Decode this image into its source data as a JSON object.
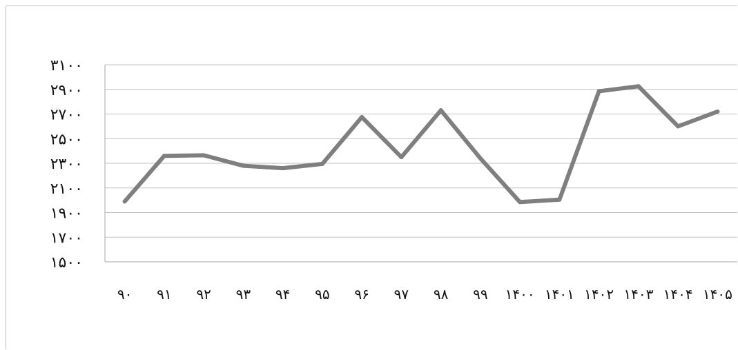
{
  "chart_data": {
    "type": "line",
    "title": "",
    "xlabel": "",
    "ylabel": "",
    "categories": [
      "۹۰",
      "۹۱",
      "۹۲",
      "۹۳",
      "۹۴",
      "۹۵",
      "۹۶",
      "۹۷",
      "۹۸",
      "۹۹",
      "۱۴۰۰",
      "۱۴۰۱",
      "۱۴۰۲",
      "۱۴۰۳",
      "۱۴۰۴",
      "۱۴۰۵"
    ],
    "category_labels": [
      [
        "۹۰"
      ],
      [
        "۹۱"
      ],
      [
        "۹۲"
      ],
      [
        "۹۳"
      ],
      [
        "۹۴"
      ],
      [
        "۹۵"
      ],
      [
        "۹۶"
      ],
      [
        "۹۷"
      ],
      [
        "۹۸"
      ],
      [
        "۹۹"
      ],
      [
        "۱۴۰۰"
      ],
      [
        "۱۴۰۱"
      ],
      [
        "۱۴۰۲"
      ],
      [
        "۱۴۰۳"
      ],
      [
        "۱۴۰۴"
      ],
      [
        "۱۴۰۵"
      ]
    ],
    "values": [
      1990,
      2360,
      2365,
      2280,
      2260,
      2295,
      2675,
      2350,
      2730,
      2340,
      1985,
      2005,
      2885,
      2925,
      2600,
      2720
    ],
    "ylim": [
      1500,
      3100
    ],
    "yticks": [
      1500,
      1700,
      1900,
      2100,
      2300,
      2500,
      2700,
      2900,
      3100
    ],
    "ytick_labels": [
      "۱۵۰۰",
      "۱۷۰۰",
      "۱۹۰۰",
      "۲۱۰۰",
      "۲۳۰۰",
      "۲۵۰۰",
      "۲۷۰۰",
      "۲۹۰۰",
      "۳۱۰۰"
    ],
    "grid": true,
    "legend": "none",
    "colors": {
      "line": "#7f7f7f",
      "grid": "#bfbfbf",
      "axis": "#a6a6a6",
      "text": "#111111"
    }
  }
}
